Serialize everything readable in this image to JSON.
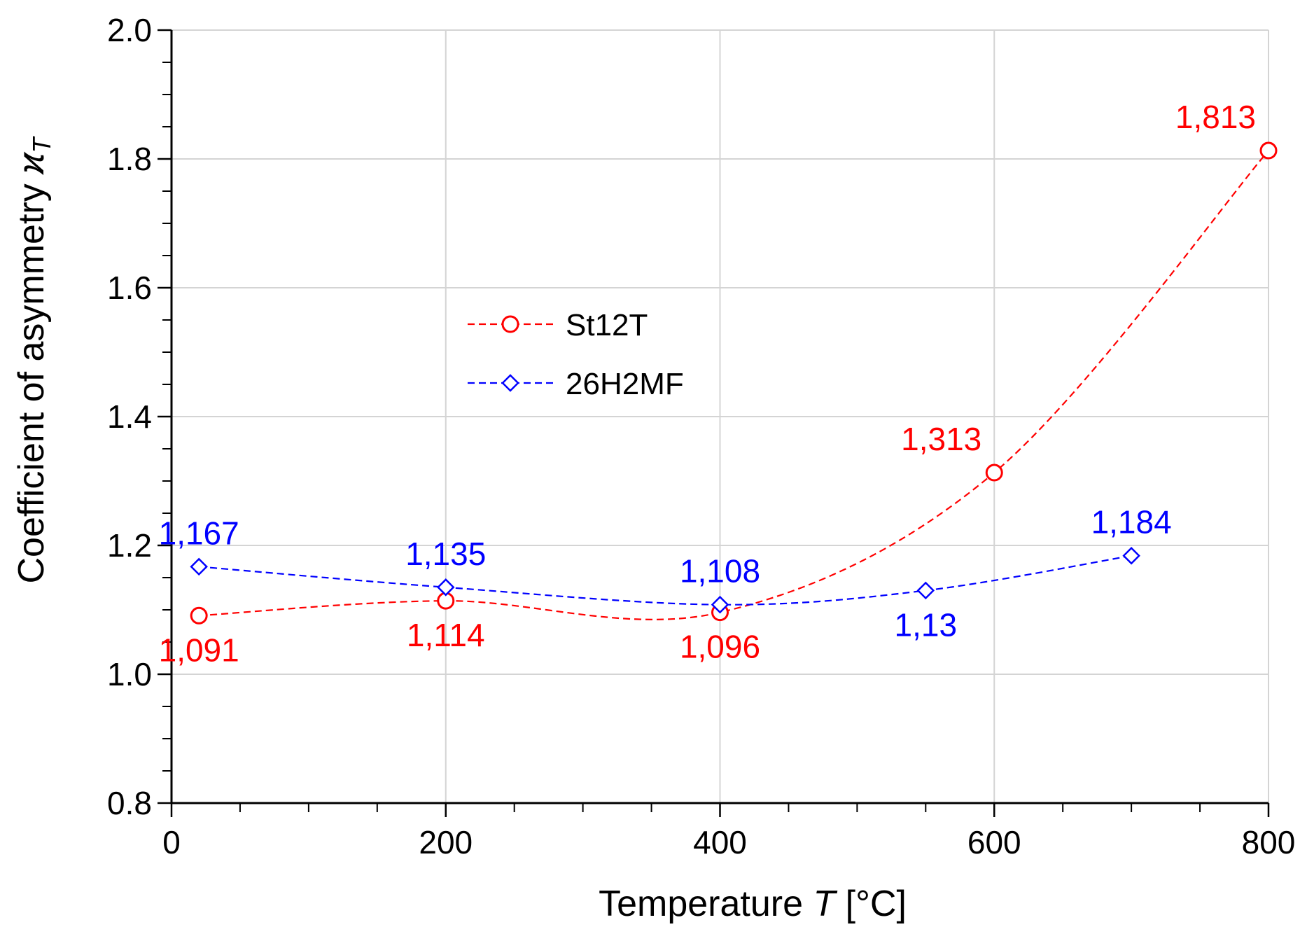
{
  "chart_data": {
    "type": "line",
    "title": "",
    "xlabel": {
      "prefix": "Temperature ",
      "symbol": "T",
      "unit": " [°C]"
    },
    "ylabel": {
      "prefix": "Coefficient of asymmetry ",
      "symbol": "ϰ",
      "subscript": "T"
    },
    "xlim": [
      0,
      800
    ],
    "ylim": [
      0.8,
      2.0
    ],
    "x_ticks": [
      0,
      200,
      400,
      600,
      800
    ],
    "x_tick_labels": [
      "0",
      "200",
      "400",
      "600",
      "800"
    ],
    "y_ticks": [
      0.8,
      1.0,
      1.2,
      1.4,
      1.6,
      1.8,
      2.0
    ],
    "y_tick_labels": [
      "0.8",
      "1.0",
      "1.2",
      "1.4",
      "1.6",
      "1.8",
      "2.0"
    ],
    "x_minor_step": 50,
    "y_minor_step": 0.05,
    "grid": true,
    "legend_position": "center-left",
    "series": [
      {
        "name": "St12T",
        "color": "#ff0000",
        "marker": "circle",
        "line_style": "dashed",
        "x": [
          20,
          200,
          400,
          600,
          800
        ],
        "y": [
          1.091,
          1.114,
          1.096,
          1.313,
          1.813
        ],
        "labels": [
          "1,091",
          "1,114",
          "1,096",
          "1,313",
          "1,813"
        ],
        "label_positions": [
          "below",
          "below",
          "below",
          "above-left",
          "above-left"
        ]
      },
      {
        "name": "26H2MF",
        "color": "#0000ff",
        "marker": "diamond",
        "line_style": "dashed",
        "x": [
          20,
          200,
          400,
          550,
          700
        ],
        "y": [
          1.167,
          1.135,
          1.108,
          1.13,
          1.184
        ],
        "labels": [
          "1,167",
          "1,135",
          "1,108",
          "1,13",
          "1,184"
        ],
        "label_positions": [
          "above",
          "above",
          "above",
          "below",
          "above"
        ]
      }
    ]
  }
}
